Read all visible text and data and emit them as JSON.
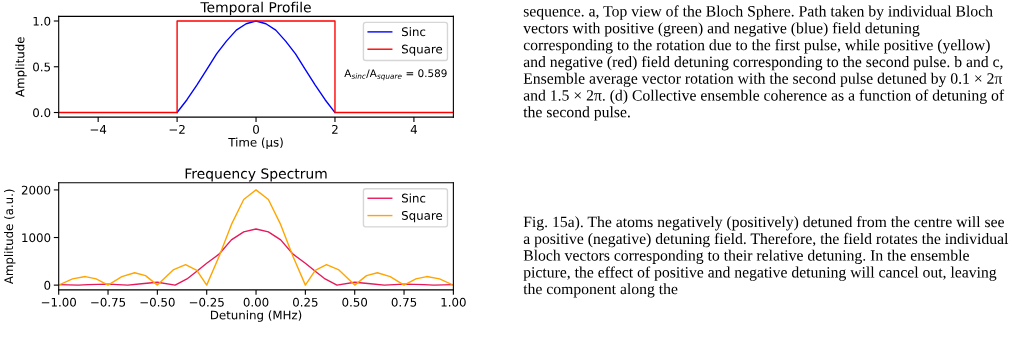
{
  "chart_data": [
    {
      "type": "line",
      "title": "Temporal Profile",
      "xlabel": "Time (µs)",
      "ylabel": "Amplitude",
      "xlim": [
        -5,
        5
      ],
      "xticks": [
        {
          "value": -4,
          "label": "−4"
        },
        {
          "value": -2,
          "label": "−2"
        },
        0,
        2,
        4
      ],
      "ylim": [
        -0.05,
        1.05
      ],
      "yticks": [
        {
          "value": 0,
          "label": "0.0"
        },
        0.5,
        {
          "value": 1,
          "label": "1.0"
        }
      ],
      "grid": false,
      "legend": "top right",
      "annotations": [
        "A$_{sinc}$/A$_{square}$ = 0.589"
      ],
      "series": [
        {
          "name": "Sinc",
          "color": "#0000ff",
          "x": [
            -2,
            -1.75,
            -1.5,
            -1.25,
            -1,
            -0.75,
            -0.5,
            -0.25,
            0,
            0.25,
            0.5,
            0.75,
            1,
            1.25,
            1.5,
            1.75,
            2
          ],
          "values": [
            0,
            0.14,
            0.3,
            0.47,
            0.64,
            0.78,
            0.9,
            0.97,
            1,
            0.97,
            0.9,
            0.78,
            0.64,
            0.47,
            0.3,
            0.14,
            0
          ]
        },
        {
          "name": "Square",
          "color": "#ff0000",
          "x": [
            -5,
            -2,
            -2,
            2,
            2,
            5
          ],
          "values": [
            0,
            0,
            1,
            1,
            0,
            0
          ]
        }
      ]
    },
    {
      "type": "line",
      "title": "Frequency Spectrum",
      "xlabel": "Detuning (MHz)",
      "ylabel": "Amplitude (a.u.)",
      "xlim": [
        -1,
        1
      ],
      "xticks": [
        {
          "value": -1,
          "label": "−1.00"
        },
        {
          "value": -0.75,
          "label": "−0.75"
        },
        {
          "value": -0.5,
          "label": "−0.50"
        },
        {
          "value": -0.25,
          "label": "−0.25"
        },
        {
          "value": 0,
          "label": "0.00"
        },
        {
          "value": 0.25,
          "label": "0.25"
        },
        {
          "value": 0.5,
          "label": "0.50"
        },
        {
          "value": 0.75,
          "label": "0.75"
        },
        {
          "value": 1,
          "label": "1.00"
        }
      ],
      "ylim": [
        -100,
        2150
      ],
      "yticks": [
        0,
        1000,
        2000
      ],
      "grid": false,
      "legend": "top right",
      "series": [
        {
          "name": "Sinc",
          "color": "#e6195a",
          "x": [
            -1,
            -0.9,
            -0.85,
            -0.75,
            -0.65,
            -0.58,
            -0.5,
            -0.41,
            -0.35,
            -0.3,
            -0.25,
            -0.1875,
            -0.125,
            -0.0625,
            0,
            0.0625,
            0.125,
            0.1875,
            0.25,
            0.3,
            0.35,
            0.41,
            0.5,
            0.58,
            0.65,
            0.75,
            0.85,
            0.9,
            1
          ],
          "values": [
            10,
            0,
            10,
            20,
            0,
            30,
            60,
            0,
            130,
            290,
            460,
            650,
            950,
            1120,
            1180,
            1120,
            950,
            650,
            460,
            290,
            130,
            0,
            60,
            30,
            0,
            20,
            10,
            0,
            10
          ]
        },
        {
          "name": "Square",
          "color": "#ffa500",
          "x": [
            -1,
            -0.93,
            -0.865,
            -0.81,
            -0.75,
            -0.68,
            -0.615,
            -0.56,
            -0.5,
            -0.42,
            -0.357,
            -0.3,
            -0.25,
            -0.1875,
            -0.125,
            -0.0625,
            0,
            0.0625,
            0.125,
            0.1875,
            0.25,
            0.3,
            0.357,
            0.42,
            0.5,
            0.56,
            0.615,
            0.68,
            0.75,
            0.81,
            0.865,
            0.93,
            1
          ],
          "values": [
            0,
            130,
            180,
            130,
            0,
            180,
            260,
            200,
            0,
            320,
            430,
            310,
            0,
            600,
            1270,
            1800,
            2000,
            1800,
            1270,
            600,
            0,
            310,
            430,
            320,
            0,
            200,
            260,
            180,
            0,
            130,
            180,
            130,
            0
          ]
        }
      ]
    },
    {
      "type": "other",
      "annotations": [
        "sequence. a, Top view of the Bloch Sphere. Path taken by individual Bloch vectors with positive (green) and negative (blue) field detuning corresponding to the rotation due to the first pulse, while positive (yellow) and negative (red) field detuning corresponding to the second pulse. b and c, Ensemble average vector rotation with the second pulse detuned by 0.1 × 2π and 1.5 × 2π. (d) Collective ensemble coherence as a function of detuning of the second pulse.",
        "Fig. 15a). The atoms negatively (positively) detuned from the centre will see a positive (negative) detuning field. Therefore, the field rotates the individual Bloch vectors corresponding to their relative detuning. In the ensemble picture, the effect of positive and negative detuning will cancel out, leaving the component along the"
      ]
    }
  ]
}
